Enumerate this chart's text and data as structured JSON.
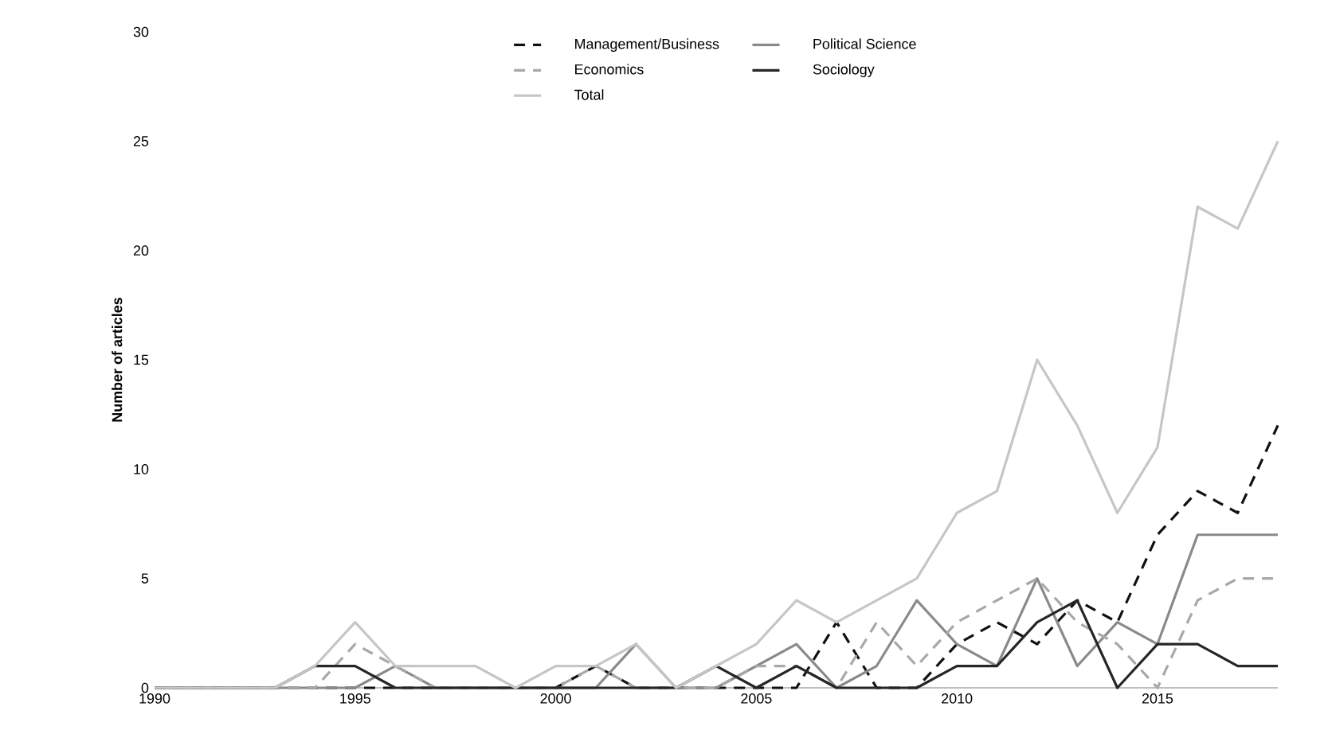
{
  "chart_data": {
    "type": "line",
    "ylabel": "Number of articles",
    "x": [
      1990,
      1991,
      1992,
      1993,
      1994,
      1995,
      1996,
      1997,
      1998,
      1999,
      2000,
      2001,
      2002,
      2003,
      2004,
      2005,
      2006,
      2007,
      2008,
      2009,
      2010,
      2011,
      2012,
      2013,
      2014,
      2015,
      2016,
      2017,
      2018
    ],
    "series": [
      {
        "name": "Management/Business",
        "color": "#111111",
        "line_style": "dashed",
        "values": [
          0,
          0,
          0,
          0,
          0,
          0,
          0,
          0,
          0,
          0,
          0,
          1,
          0,
          0,
          0,
          0,
          0,
          3,
          0,
          0,
          2,
          3,
          2,
          4,
          3,
          7,
          9,
          8,
          12
        ]
      },
      {
        "name": "Political Science",
        "color": "#8a8a8a",
        "line_style": "solid",
        "values": [
          0,
          0,
          0,
          0,
          0,
          0,
          1,
          0,
          0,
          0,
          0,
          0,
          2,
          0,
          0,
          1,
          2,
          0,
          1,
          4,
          2,
          1,
          5,
          1,
          3,
          2,
          7,
          7,
          7
        ]
      },
      {
        "name": "Economics",
        "color": "#a8a8a8",
        "line_style": "dashed",
        "values": [
          0,
          0,
          0,
          0,
          0,
          2,
          1,
          0,
          0,
          0,
          0,
          1,
          0,
          0,
          0,
          1,
          1,
          0,
          3,
          1,
          3,
          4,
          5,
          3,
          2,
          0,
          4,
          5,
          5
        ]
      },
      {
        "name": "Sociology",
        "color": "#262626",
        "line_style": "solid",
        "values": [
          0,
          0,
          0,
          0,
          1,
          1,
          0,
          0,
          0,
          0,
          0,
          0,
          0,
          0,
          1,
          0,
          1,
          0,
          0,
          0,
          1,
          1,
          3,
          4,
          0,
          2,
          2,
          1,
          1
        ]
      },
      {
        "name": "Total",
        "color": "#c6c6c6",
        "line_style": "solid",
        "values": [
          0,
          0,
          0,
          0,
          1,
          3,
          1,
          1,
          1,
          0,
          1,
          1,
          2,
          0,
          1,
          2,
          4,
          3,
          4,
          5,
          8,
          9,
          15,
          12,
          8,
          11,
          22,
          21,
          25
        ]
      }
    ],
    "xlim": [
      1990,
      2018
    ],
    "xticks": [
      1990,
      1995,
      2000,
      2005,
      2010,
      2015
    ],
    "ylim": [
      0,
      30
    ],
    "yticks": [
      0,
      5,
      10,
      15,
      20,
      25,
      30
    ],
    "grid": false,
    "legend": "top",
    "marker": "none"
  }
}
